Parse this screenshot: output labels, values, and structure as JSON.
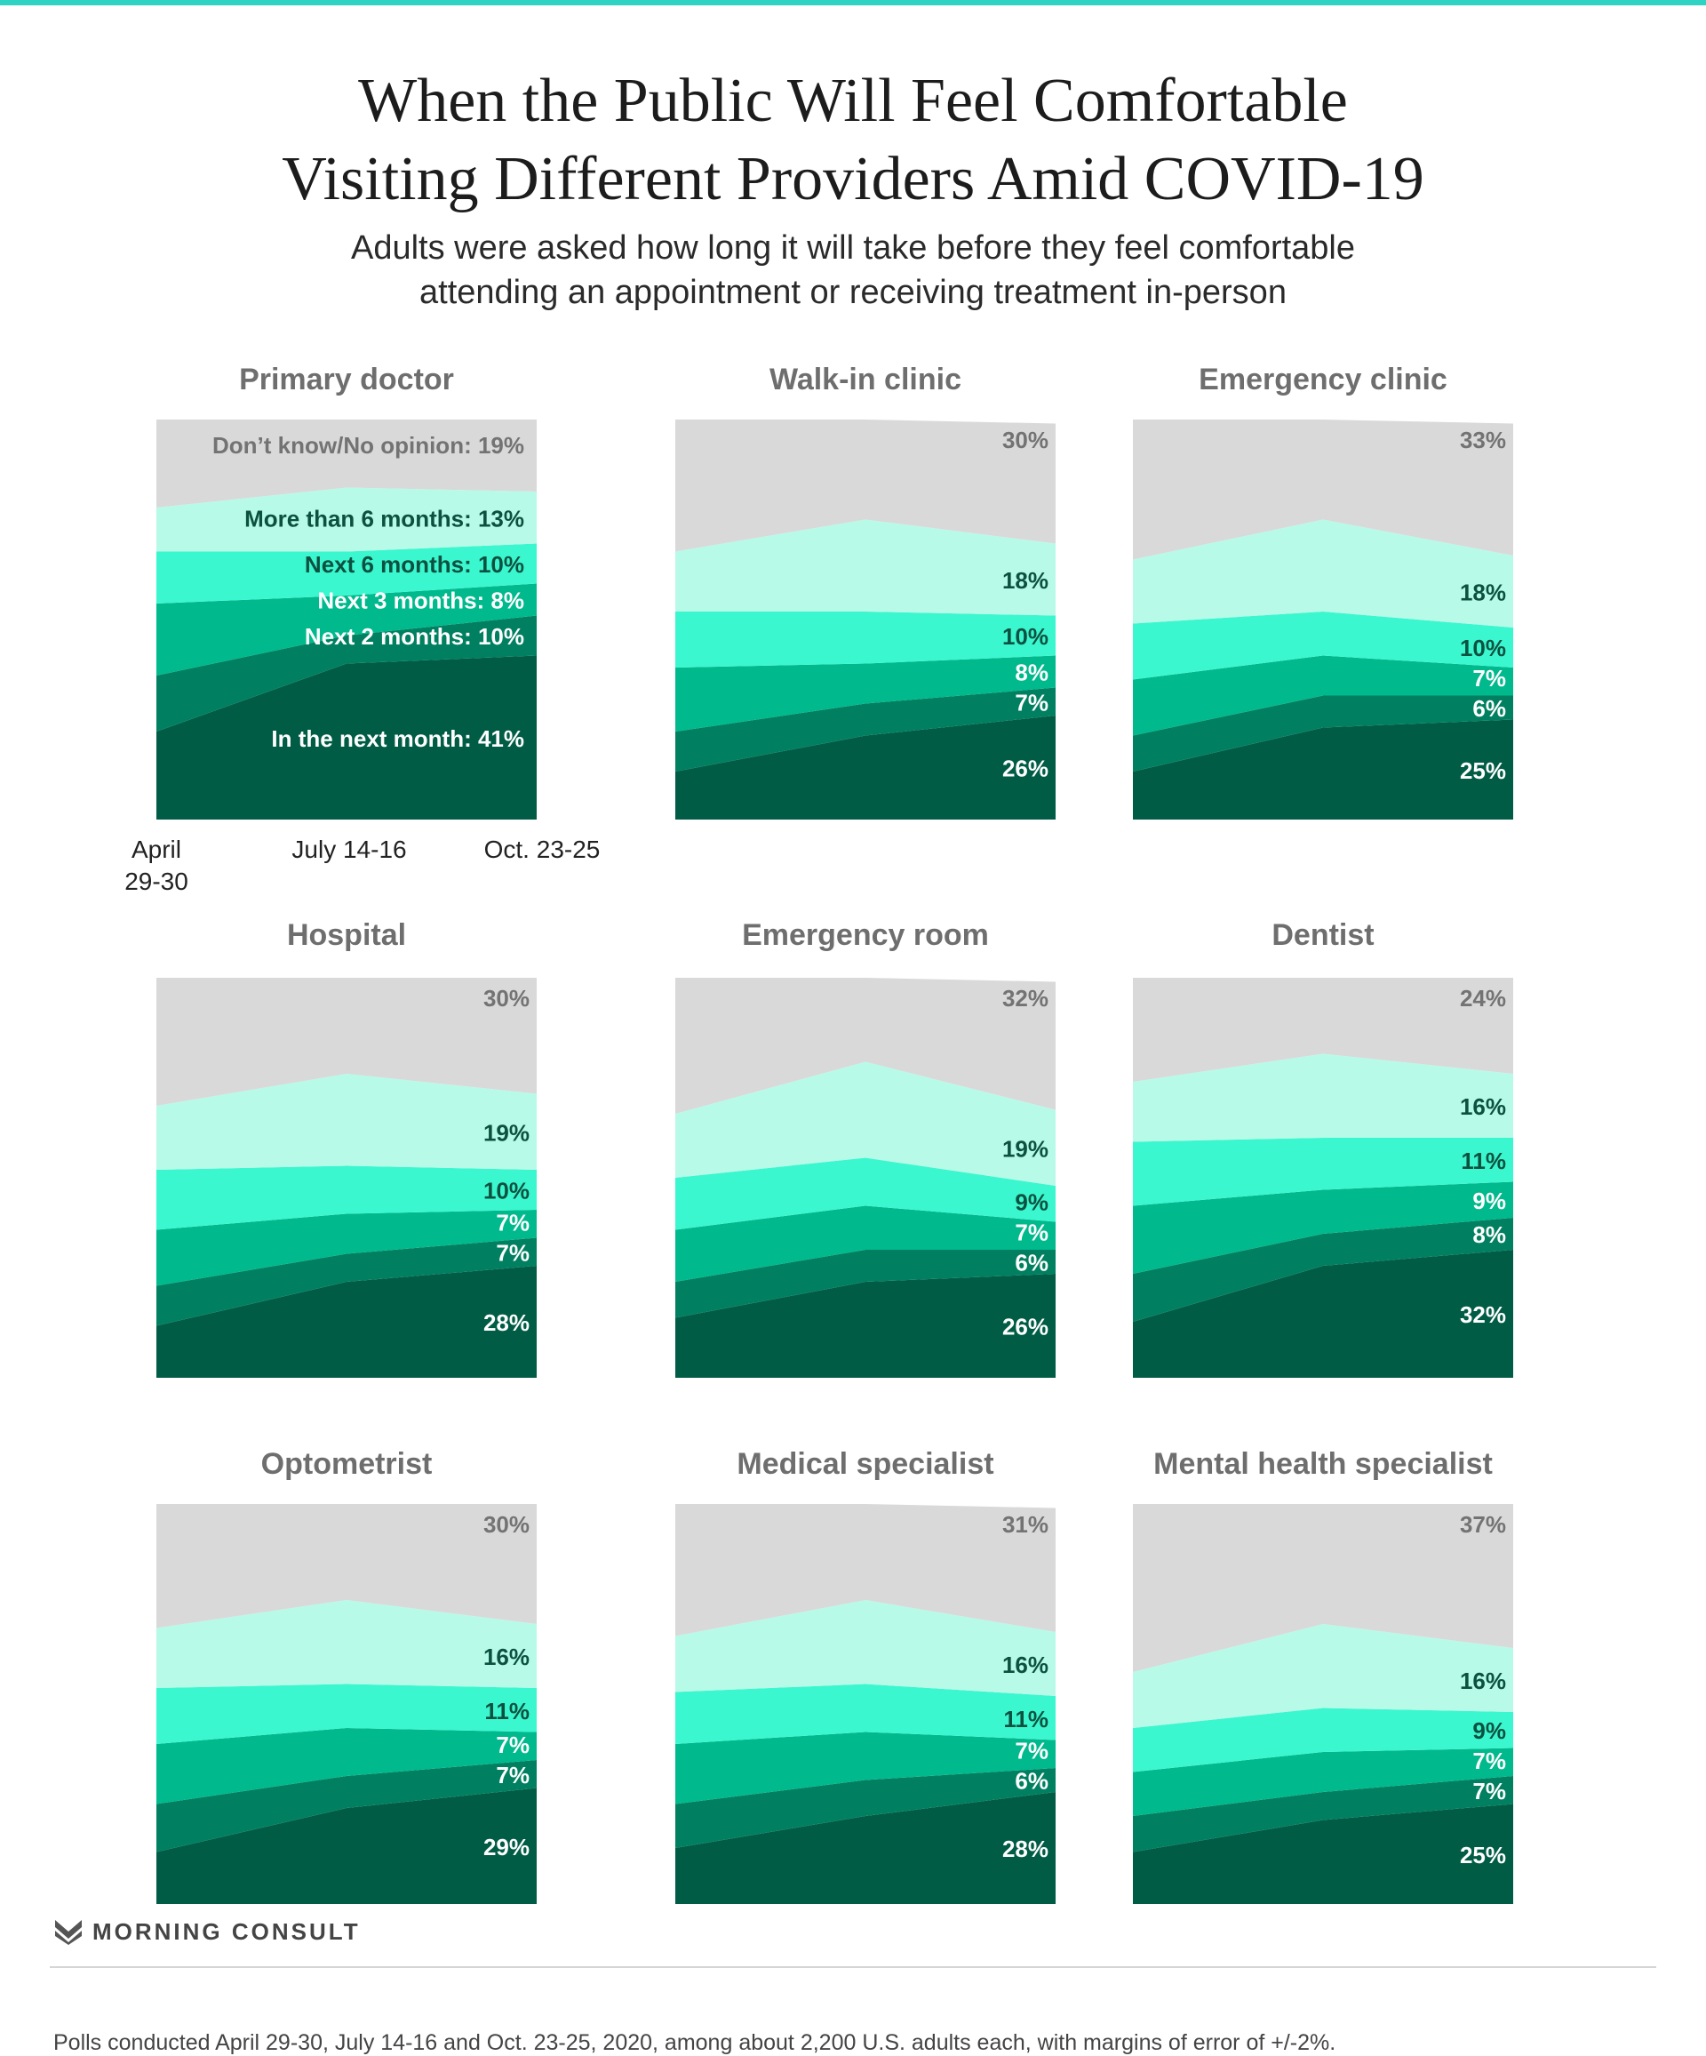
{
  "title_lines": [
    "When the Public Will Feel Comfortable",
    "Visiting Different Providers Amid COVID-19"
  ],
  "subtitle_lines": [
    "Adults were asked how long it will take before they feel comfortable",
    "attending an appointment or receiving treatment in-person"
  ],
  "colors": {
    "dont_know": "#d9d9d9",
    "more_than_6_months": "#b8fae8",
    "next_6_months": "#3bf7cf",
    "next_3_months": "#00b98d",
    "next_2_months": "#008060",
    "next_month": "#005c45",
    "label_dark": "#0c5140",
    "label_white": "#ffffff",
    "label_grey": "#737373"
  },
  "chart_data": [
    {
      "type": "area",
      "stacked": true,
      "title": "Primary doctor",
      "x": [
        "April 29-30",
        "July 14-16",
        "Oct. 23-25"
      ],
      "series": [
        {
          "name": "In the next month",
          "values": [
            22,
            39,
            41
          ]
        },
        {
          "name": "Next 2 months",
          "values": [
            14,
            7,
            10
          ]
        },
        {
          "name": "Next 3 months",
          "values": [
            18,
            10,
            8
          ]
        },
        {
          "name": "Next 6 months",
          "values": [
            13,
            11,
            10
          ]
        },
        {
          "name": "More than 6 months",
          "values": [
            11,
            16,
            13
          ]
        },
        {
          "name": "Don't know/No opinion",
          "values": [
            22,
            17,
            19
          ]
        }
      ],
      "labels": [
        "In the next month: 41%",
        "Next 2 months: 10%",
        "Next 3 months: 8%",
        "Next 6 months: 10%",
        "More than 6 months: 13%",
        "Don’t know/No opinion: 19%"
      ]
    },
    {
      "type": "area",
      "stacked": true,
      "title": "Walk-in clinic",
      "x": [
        "April 29-30",
        "July 14-16",
        "Oct. 23-25"
      ],
      "series": [
        {
          "name": "In the next month",
          "values": [
            12,
            21,
            26
          ]
        },
        {
          "name": "Next 2 months",
          "values": [
            10,
            8,
            7
          ]
        },
        {
          "name": "Next 3 months",
          "values": [
            16,
            10,
            8
          ]
        },
        {
          "name": "Next 6 months",
          "values": [
            14,
            13,
            10
          ]
        },
        {
          "name": "More than 6 months",
          "values": [
            15,
            23,
            18
          ]
        },
        {
          "name": "Don't know/No opinion",
          "values": [
            33,
            25,
            30
          ]
        }
      ],
      "labels": [
        "26%",
        "7%",
        "8%",
        "10%",
        "18%",
        "30%"
      ]
    },
    {
      "type": "area",
      "stacked": true,
      "title": "Emergency clinic",
      "x": [
        "April 29-30",
        "July 14-16",
        "Oct. 23-25"
      ],
      "series": [
        {
          "name": "In the next month",
          "values": [
            12,
            23,
            25
          ]
        },
        {
          "name": "Next 2 months",
          "values": [
            9,
            8,
            6
          ]
        },
        {
          "name": "Next 3 months",
          "values": [
            14,
            10,
            7
          ]
        },
        {
          "name": "Next 6 months",
          "values": [
            14,
            11,
            10
          ]
        },
        {
          "name": "More than 6 months",
          "values": [
            16,
            23,
            18
          ]
        },
        {
          "name": "Don't know/No opinion",
          "values": [
            35,
            25,
            33
          ]
        }
      ],
      "labels": [
        "25%",
        "6%",
        "7%",
        "10%",
        "18%",
        "33%"
      ]
    },
    {
      "type": "area",
      "stacked": true,
      "title": "Hospital",
      "x": [
        "April 29-30",
        "July 14-16",
        "Oct. 23-25"
      ],
      "series": [
        {
          "name": "In the next month",
          "values": [
            13,
            24,
            28
          ]
        },
        {
          "name": "Next 2 months",
          "values": [
            10,
            7,
            7
          ]
        },
        {
          "name": "Next 3 months",
          "values": [
            14,
            10,
            7
          ]
        },
        {
          "name": "Next 6 months",
          "values": [
            15,
            12,
            10
          ]
        },
        {
          "name": "More than 6 months",
          "values": [
            16,
            23,
            19
          ]
        },
        {
          "name": "Don't know/No opinion",
          "values": [
            32,
            24,
            30
          ]
        }
      ],
      "labels": [
        "28%",
        "7%",
        "7%",
        "10%",
        "19%",
        "30%"
      ]
    },
    {
      "type": "area",
      "stacked": true,
      "title": "Emergency room",
      "x": [
        "April 29-30",
        "July 14-16",
        "Oct. 23-25"
      ],
      "series": [
        {
          "name": "In the next month",
          "values": [
            15,
            24,
            26
          ]
        },
        {
          "name": "Next 2 months",
          "values": [
            9,
            8,
            6
          ]
        },
        {
          "name": "Next 3 months",
          "values": [
            13,
            11,
            7
          ]
        },
        {
          "name": "Next 6 months",
          "values": [
            13,
            12,
            9
          ]
        },
        {
          "name": "More than 6 months",
          "values": [
            16,
            24,
            19
          ]
        },
        {
          "name": "Don't know/No opinion",
          "values": [
            34,
            21,
            32
          ]
        }
      ],
      "labels": [
        "26%",
        "6%",
        "7%",
        "9%",
        "19%",
        "32%"
      ]
    },
    {
      "type": "area",
      "stacked": true,
      "title": "Dentist",
      "x": [
        "April 29-30",
        "July 14-16",
        "Oct. 23-25"
      ],
      "series": [
        {
          "name": "In the next month",
          "values": [
            14,
            28,
            32
          ]
        },
        {
          "name": "Next 2 months",
          "values": [
            12,
            8,
            8
          ]
        },
        {
          "name": "Next 3 months",
          "values": [
            17,
            11,
            9
          ]
        },
        {
          "name": "Next 6 months",
          "values": [
            16,
            13,
            11
          ]
        },
        {
          "name": "More than 6 months",
          "values": [
            15,
            21,
            16
          ]
        },
        {
          "name": "Don't know/No opinion",
          "values": [
            26,
            19,
            24
          ]
        }
      ],
      "labels": [
        "32%",
        "8%",
        "9%",
        "11%",
        "16%",
        "24%"
      ]
    },
    {
      "type": "area",
      "stacked": true,
      "title": "Optometrist",
      "x": [
        "April 29-30",
        "July 14-16",
        "Oct. 23-25"
      ],
      "series": [
        {
          "name": "In the next month",
          "values": [
            13,
            24,
            29
          ]
        },
        {
          "name": "Next 2 months",
          "values": [
            12,
            8,
            7
          ]
        },
        {
          "name": "Next 3 months",
          "values": [
            15,
            12,
            7
          ]
        },
        {
          "name": "Next 6 months",
          "values": [
            14,
            11,
            11
          ]
        },
        {
          "name": "More than 6 months",
          "values": [
            15,
            21,
            16
          ]
        },
        {
          "name": "Don't know/No opinion",
          "values": [
            31,
            24,
            30
          ]
        }
      ],
      "labels": [
        "29%",
        "7%",
        "7%",
        "11%",
        "16%",
        "30%"
      ]
    },
    {
      "type": "area",
      "stacked": true,
      "title": "Medical specialist",
      "x": [
        "April 29-30",
        "July 14-16",
        "Oct. 23-25"
      ],
      "series": [
        {
          "name": "In the next month",
          "values": [
            14,
            22,
            28
          ]
        },
        {
          "name": "Next 2 months",
          "values": [
            11,
            9,
            6
          ]
        },
        {
          "name": "Next 3 months",
          "values": [
            15,
            12,
            7
          ]
        },
        {
          "name": "Next 6 months",
          "values": [
            13,
            12,
            11
          ]
        },
        {
          "name": "More than 6 months",
          "values": [
            14,
            21,
            16
          ]
        },
        {
          "name": "Don't know/No opinion",
          "values": [
            33,
            24,
            31
          ]
        }
      ],
      "labels": [
        "28%",
        "6%",
        "7%",
        "11%",
        "16%",
        "31%"
      ]
    },
    {
      "type": "area",
      "stacked": true,
      "title": "Mental health specialist",
      "x": [
        "April 29-30",
        "July 14-16",
        "Oct. 23-25"
      ],
      "series": [
        {
          "name": "In the next month",
          "values": [
            13,
            21,
            25
          ]
        },
        {
          "name": "Next 2 months",
          "values": [
            9,
            7,
            7
          ]
        },
        {
          "name": "Next 3 months",
          "values": [
            11,
            10,
            7
          ]
        },
        {
          "name": "Next 6 months",
          "values": [
            11,
            11,
            9
          ]
        },
        {
          "name": "More than 6 months",
          "values": [
            14,
            21,
            16
          ]
        },
        {
          "name": "Don't know/No opinion",
          "values": [
            42,
            30,
            37
          ]
        }
      ],
      "labels": [
        "25%",
        "7%",
        "7%",
        "9%",
        "16%",
        "37%"
      ]
    }
  ],
  "x_ticks": [
    "April\n29-30",
    "July 14-16",
    "Oct. 23-25"
  ],
  "logo_text": "MORNING CONSULT",
  "footer": "Polls conducted April 29-30, July 14-16 and Oct. 23-25, 2020, among about 2,200 U.S. adults each, with margins of error of +/-2%."
}
